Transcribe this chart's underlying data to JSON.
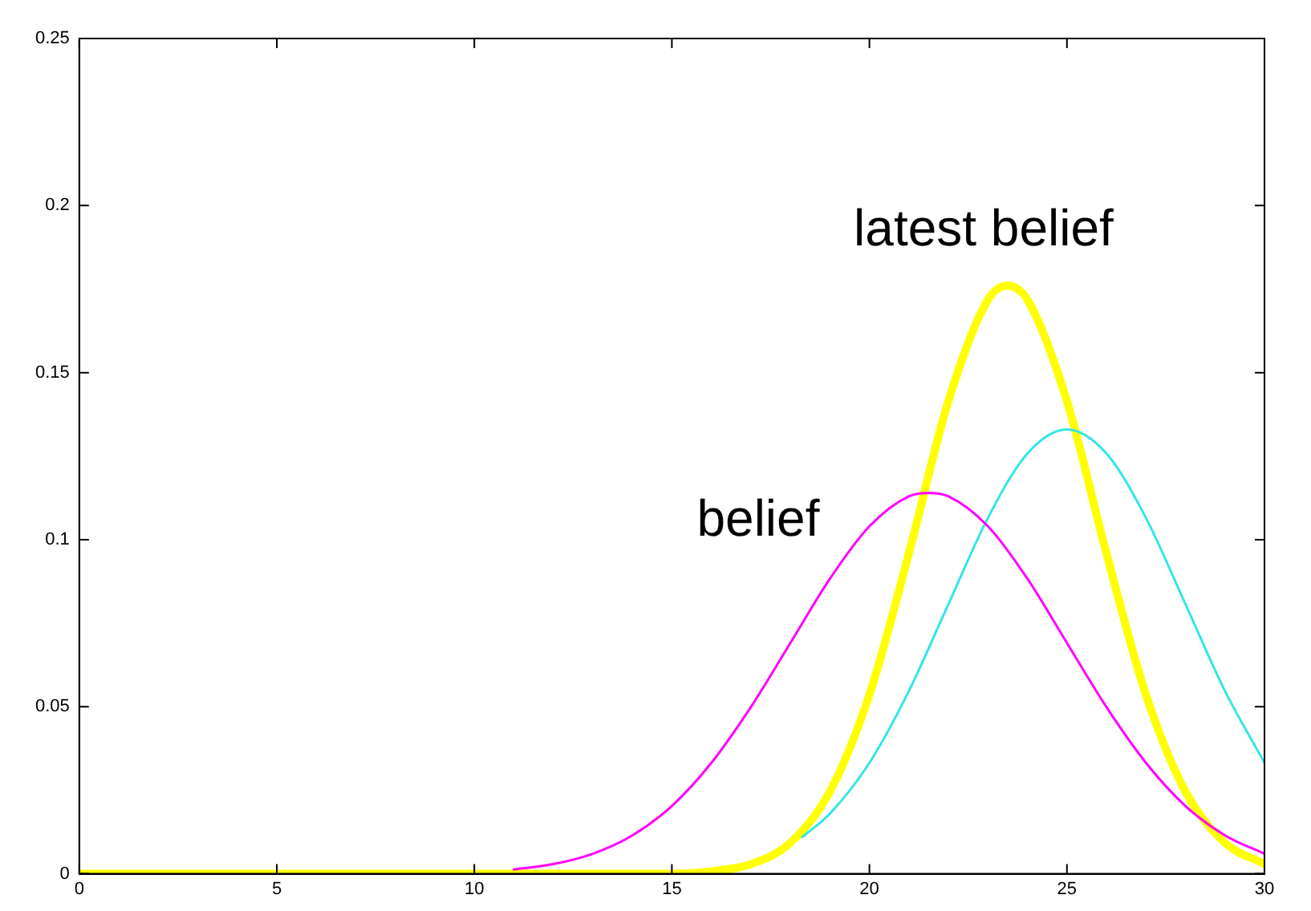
{
  "chart_data": {
    "type": "line",
    "xlim": [
      0,
      30
    ],
    "xticks": [
      0,
      5,
      10,
      15,
      20,
      25,
      30
    ],
    "ylim": [
      0,
      0.25
    ],
    "yticks": [
      0,
      0.05,
      0.1,
      0.15,
      0.2,
      0.25
    ],
    "grid": false,
    "legend": false,
    "marker": "none",
    "line_style": "solid",
    "annotations": [
      "latest belief",
      "belief"
    ],
    "series": [
      {
        "color": "#ff00ff",
        "x": [
          11,
          12,
          13,
          14,
          15,
          16,
          17,
          18,
          19,
          20,
          21,
          21.5,
          22,
          23,
          24,
          25,
          26,
          27,
          28,
          29,
          30
        ],
        "values": [
          0.0013,
          0.0029,
          0.006,
          0.0115,
          0.0203,
          0.0332,
          0.0499,
          0.0691,
          0.0883,
          0.104,
          0.113,
          0.114,
          0.113,
          0.104,
          0.0883,
          0.0691,
          0.0499,
          0.0332,
          0.0203,
          0.0115,
          0.006
        ]
      },
      {
        "color": "#33e6e6",
        "x": [
          18.3,
          19,
          20,
          21,
          22,
          23,
          24,
          25,
          26,
          27,
          28,
          29,
          30
        ],
        "values": [
          0.011,
          0.018,
          0.0332,
          0.0547,
          0.0807,
          0.1065,
          0.1258,
          0.133,
          0.1258,
          0.1065,
          0.0807,
          0.0547,
          0.0332
        ]
      },
      {
        "color": "#ffff00",
        "x": [
          0,
          5,
          10,
          15,
          16,
          17,
          18,
          19,
          20,
          21,
          22,
          23,
          23.5,
          24,
          25,
          26,
          27,
          28,
          29,
          30
        ],
        "values": [
          0,
          0,
          0,
          0,
          0.0007,
          0.0029,
          0.0093,
          0.0246,
          0.0536,
          0.0959,
          0.1415,
          0.1718,
          0.176,
          0.1718,
          0.1415,
          0.0959,
          0.0536,
          0.0246,
          0.0093,
          0.0029
        ]
      }
    ]
  }
}
